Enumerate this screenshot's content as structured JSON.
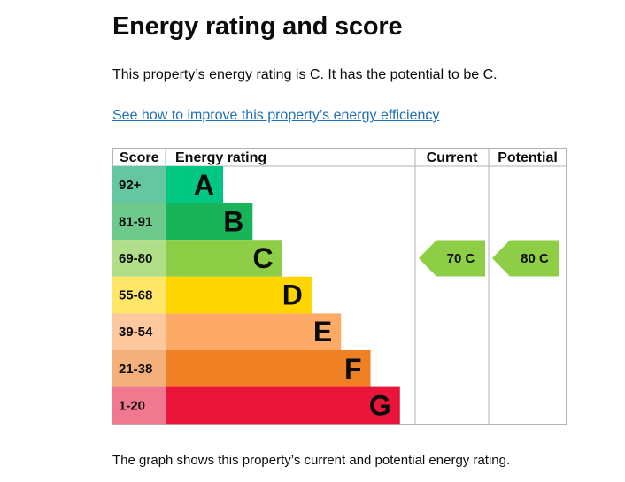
{
  "page": {
    "title": "Energy rating and score",
    "intro": "This property’s energy rating is C. It has the potential to be C.",
    "link_text": "See how to improve this property’s energy efficiency",
    "link_suffix": ".",
    "footer": "The graph shows this property’s current and potential energy rating."
  },
  "chart": {
    "headers": {
      "score": "Score",
      "energy_rating": "Energy rating",
      "current": "Current",
      "potential": "Potential"
    },
    "bands": [
      {
        "score": "92+",
        "letter": "A",
        "color": "#00c781",
        "score_color": "#64c7a1"
      },
      {
        "score": "81-91",
        "letter": "B",
        "color": "#19b459",
        "score_color": "#6ec98d"
      },
      {
        "score": "69-80",
        "letter": "C",
        "color": "#8dce46",
        "score_color": "#b1de88"
      },
      {
        "score": "55-68",
        "letter": "D",
        "color": "#ffd500",
        "score_color": "#ffe666"
      },
      {
        "score": "39-54",
        "letter": "E",
        "color": "#fcaa65",
        "score_color": "#fdc89e"
      },
      {
        "score": "21-38",
        "letter": "F",
        "color": "#ef8023",
        "score_color": "#f4b07a"
      },
      {
        "score": "1-20",
        "letter": "G",
        "color": "#e9153b",
        "score_color": "#f0788f"
      }
    ],
    "current": {
      "label": "70  C",
      "score": 70,
      "band": "C",
      "color": "#8dce46"
    },
    "potential": {
      "label": "80  C",
      "score": 80,
      "band": "C",
      "color": "#8dce46"
    },
    "border_color": "#b1b4b6"
  }
}
